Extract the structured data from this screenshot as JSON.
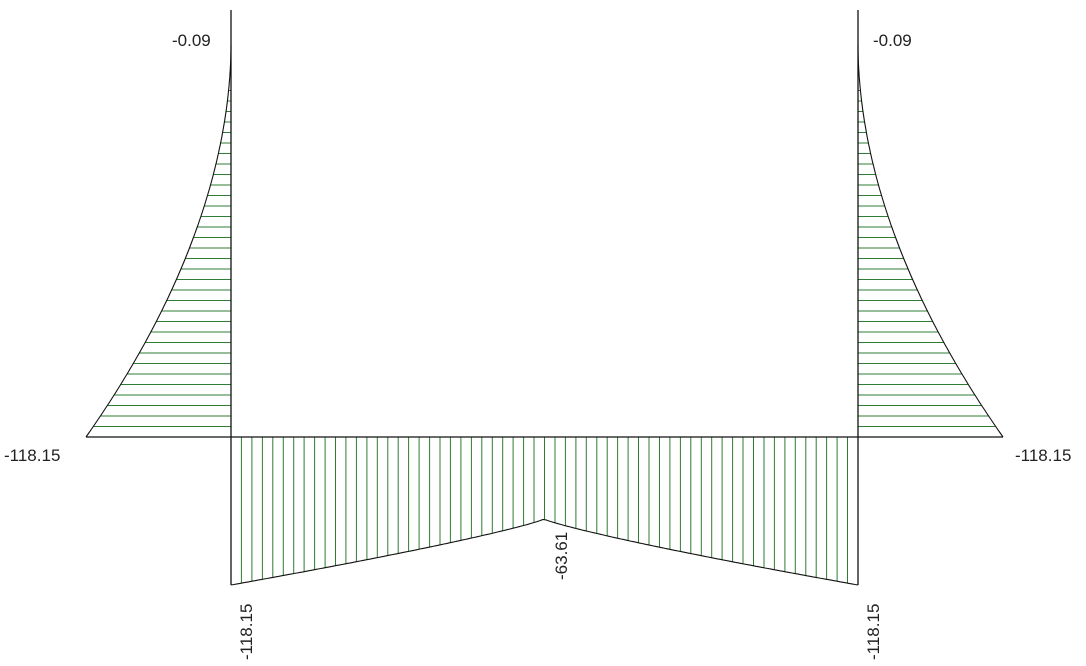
{
  "colors": {
    "hatch": "#2e7d32",
    "outline": "#111111",
    "frame": "#111111",
    "background": "#ffffff",
    "text": "#222222"
  },
  "diagram": {
    "left_column": {
      "top_value": "-0.09",
      "base_value": "-118.15"
    },
    "right_column": {
      "top_value": "-0.09",
      "base_value": "-118.15"
    },
    "beam": {
      "left_end_value": "-118.15",
      "mid_value": "-63.61",
      "right_end_value": "-118.15"
    }
  }
}
